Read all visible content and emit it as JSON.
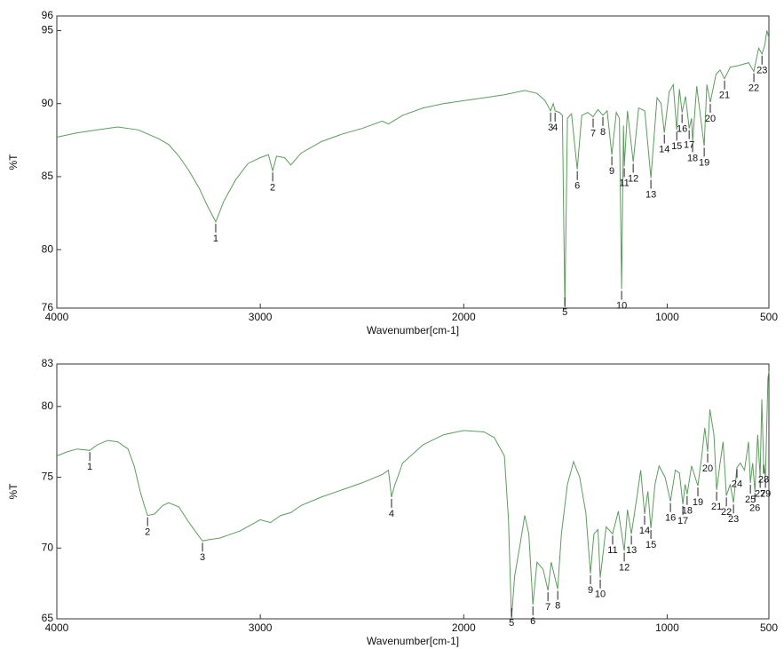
{
  "chart_data": [
    {
      "type": "line",
      "xlabel": "Wavenumber[cm-1]",
      "ylabel": "%T",
      "color": "#5c9c5c",
      "xlim": [
        4000,
        500
      ],
      "xticks": [
        4000,
        3000,
        2000,
        1000,
        500
      ],
      "ylim": [
        76,
        96
      ],
      "yticks": [
        76,
        80,
        85,
        90,
        95,
        96
      ],
      "x": [
        4000,
        3900,
        3800,
        3700,
        3600,
        3500,
        3450,
        3400,
        3350,
        3300,
        3260,
        3219,
        3180,
        3120,
        3060,
        3000,
        2960,
        2939,
        2920,
        2880,
        2850,
        2800,
        2700,
        2600,
        2500,
        2400,
        2370,
        2300,
        2200,
        2100,
        2000,
        1900,
        1800,
        1700,
        1640,
        1600,
        1573,
        1560,
        1551,
        1530,
        1515,
        1503,
        1490,
        1470,
        1442,
        1420,
        1390,
        1364,
        1340,
        1316,
        1295,
        1272,
        1250,
        1235,
        1224,
        1215,
        1211,
        1195,
        1167,
        1140,
        1110,
        1080,
        1050,
        1030,
        1014,
        990,
        970,
        953,
        940,
        927,
        910,
        892,
        880,
        875,
        855,
        818,
        805,
        788,
        760,
        740,
        718,
        690,
        650,
        600,
        574,
        550,
        534,
        520,
        510,
        500
      ],
      "values": [
        87.7,
        88.0,
        88.2,
        88.4,
        88.2,
        87.6,
        87.2,
        86.4,
        85.4,
        84.2,
        83.0,
        81.9,
        83.3,
        84.8,
        85.9,
        86.3,
        86.5,
        85.4,
        86.4,
        86.3,
        85.8,
        86.6,
        87.4,
        87.9,
        88.3,
        88.8,
        88.6,
        89.2,
        89.7,
        90.0,
        90.2,
        90.4,
        90.6,
        90.9,
        90.7,
        90.2,
        89.5,
        90.0,
        89.5,
        89.4,
        89.2,
        76.0,
        89.0,
        89.3,
        85.5,
        89.2,
        89.4,
        89.1,
        89.6,
        89.2,
        89.5,
        86.5,
        89.4,
        89.0,
        77.3,
        88.5,
        85.7,
        89.5,
        86.0,
        89.7,
        89.5,
        84.9,
        90.4,
        90.0,
        88.0,
        90.8,
        91.3,
        88.2,
        91.0,
        89.4,
        90.5,
        88.3,
        89.0,
        87.4,
        91.2,
        87.1,
        91.3,
        90.1,
        92.0,
        92.3,
        91.7,
        92.5,
        92.6,
        92.8,
        92.2,
        93.8,
        93.4,
        94.0,
        95.0,
        94.5
      ],
      "peaks": [
        {
          "label": "1",
          "x": 3219,
          "y": 81.9
        },
        {
          "label": "2",
          "x": 2939,
          "y": 85.4
        },
        {
          "label": "3",
          "x": 1573,
          "y": 89.5
        },
        {
          "label": "4",
          "x": 1551,
          "y": 89.5
        },
        {
          "label": "5",
          "x": 1503,
          "y": 76.0
        },
        {
          "label": "6",
          "x": 1442,
          "y": 85.5
        },
        {
          "label": "7",
          "x": 1364,
          "y": 89.1
        },
        {
          "label": "8",
          "x": 1316,
          "y": 89.2
        },
        {
          "label": "9",
          "x": 1272,
          "y": 86.5
        },
        {
          "label": "10",
          "x": 1224,
          "y": 77.3
        },
        {
          "label": "11",
          "x": 1211,
          "y": 85.7
        },
        {
          "label": "12",
          "x": 1167,
          "y": 86.0
        },
        {
          "label": "13",
          "x": 1080,
          "y": 84.9
        },
        {
          "label": "14",
          "x": 1014,
          "y": 88.0
        },
        {
          "label": "15",
          "x": 953,
          "y": 88.2
        },
        {
          "label": "16",
          "x": 927,
          "y": 89.4
        },
        {
          "label": "17",
          "x": 892,
          "y": 88.3
        },
        {
          "label": "18",
          "x": 875,
          "y": 87.4
        },
        {
          "label": "19",
          "x": 818,
          "y": 87.1
        },
        {
          "label": "20",
          "x": 788,
          "y": 90.1
        },
        {
          "label": "21",
          "x": 718,
          "y": 91.7
        },
        {
          "label": "22",
          "x": 574,
          "y": 92.2
        },
        {
          "label": "23",
          "x": 534,
          "y": 93.4
        }
      ]
    },
    {
      "type": "line",
      "xlabel": "Wavenumber[cm-1]",
      "ylabel": "%T",
      "color": "#5c9c5c",
      "xlim": [
        4000,
        500
      ],
      "xticks": [
        4000,
        3000,
        2000,
        1000,
        500
      ],
      "ylim": [
        65,
        83
      ],
      "yticks": [
        65,
        70,
        75,
        80,
        83
      ],
      "x": [
        4000,
        3950,
        3900,
        3838,
        3800,
        3750,
        3700,
        3650,
        3620,
        3590,
        3570,
        3554,
        3520,
        3480,
        3450,
        3400,
        3350,
        3300,
        3284,
        3250,
        3200,
        3100,
        3000,
        2950,
        2900,
        2850,
        2800,
        2700,
        2600,
        2500,
        2400,
        2370,
        2355,
        2340,
        2300,
        2200,
        2100,
        2000,
        1900,
        1850,
        1800,
        1780,
        1765,
        1750,
        1720,
        1700,
        1680,
        1660,
        1640,
        1610,
        1586,
        1570,
        1538,
        1520,
        1490,
        1460,
        1430,
        1400,
        1377,
        1360,
        1340,
        1329,
        1300,
        1268,
        1240,
        1211,
        1195,
        1176,
        1150,
        1130,
        1111,
        1095,
        1080,
        1060,
        1040,
        1010,
        984,
        960,
        940,
        923,
        912,
        902,
        880,
        849,
        830,
        815,
        801,
        790,
        770,
        757,
        740,
        725,
        709,
        690,
        674,
        657,
        640,
        620,
        600,
        591,
        580,
        569,
        555,
        543,
        535,
        526,
        517,
        510,
        505,
        500
      ],
      "values": [
        76.5,
        76.8,
        77.0,
        76.9,
        77.3,
        77.6,
        77.5,
        77.0,
        75.8,
        74.0,
        73.0,
        72.3,
        72.4,
        73.0,
        73.2,
        72.9,
        71.8,
        70.8,
        70.5,
        70.6,
        70.7,
        71.2,
        72.0,
        71.8,
        72.3,
        72.5,
        73.0,
        73.6,
        74.1,
        74.6,
        75.2,
        75.5,
        73.6,
        74.4,
        76.0,
        77.3,
        78.0,
        78.3,
        78.2,
        77.8,
        76.5,
        72.0,
        65.0,
        68.0,
        70.5,
        72.3,
        71.0,
        66.0,
        69.0,
        68.5,
        67.0,
        69.0,
        67.1,
        71.0,
        74.5,
        76.1,
        75.0,
        72.5,
        68.2,
        71.0,
        71.3,
        67.9,
        71.5,
        71.0,
        72.6,
        69.8,
        72.7,
        71.0,
        73.5,
        75.5,
        72.4,
        74.0,
        71.4,
        74.5,
        75.8,
        75.0,
        73.3,
        75.5,
        75.3,
        73.1,
        74.5,
        73.8,
        75.8,
        74.4,
        76.5,
        78.5,
        76.8,
        79.8,
        78.0,
        74.1,
        76.0,
        77.5,
        73.7,
        74.5,
        73.2,
        75.7,
        76.0,
        75.5,
        77.5,
        74.6,
        76.0,
        74.0,
        78.0,
        75.0,
        80.5,
        76.0,
        75.0,
        79.0,
        82.0,
        82.5
      ],
      "peaks": [
        {
          "label": "1",
          "x": 3838,
          "y": 76.9
        },
        {
          "label": "2",
          "x": 3554,
          "y": 72.3
        },
        {
          "label": "3",
          "x": 3284,
          "y": 70.5
        },
        {
          "label": "4",
          "x": 2355,
          "y": 73.6
        },
        {
          "label": "5",
          "x": 1765,
          "y": 65.0
        },
        {
          "label": "6",
          "x": 1660,
          "y": 66.0
        },
        {
          "label": "7",
          "x": 1586,
          "y": 67.0
        },
        {
          "label": "8",
          "x": 1538,
          "y": 67.1
        },
        {
          "label": "9",
          "x": 1377,
          "y": 68.2
        },
        {
          "label": "10",
          "x": 1329,
          "y": 67.9
        },
        {
          "label": "11",
          "x": 1268,
          "y": 71.0
        },
        {
          "label": "12",
          "x": 1211,
          "y": 69.8
        },
        {
          "label": "13",
          "x": 1176,
          "y": 71.0
        },
        {
          "label": "14",
          "x": 1111,
          "y": 72.4
        },
        {
          "label": "15",
          "x": 1080,
          "y": 71.4
        },
        {
          "label": "16",
          "x": 984,
          "y": 73.3
        },
        {
          "label": "17",
          "x": 923,
          "y": 73.1
        },
        {
          "label": "18",
          "x": 902,
          "y": 73.8
        },
        {
          "label": "19",
          "x": 849,
          "y": 74.4
        },
        {
          "label": "20",
          "x": 801,
          "y": 76.8
        },
        {
          "label": "21",
          "x": 757,
          "y": 74.1
        },
        {
          "label": "22",
          "x": 709,
          "y": 73.7
        },
        {
          "label": "23",
          "x": 674,
          "y": 73.2
        },
        {
          "label": "24",
          "x": 657,
          "y": 75.7
        },
        {
          "label": "25",
          "x": 591,
          "y": 74.6
        },
        {
          "label": "26",
          "x": 569,
          "y": 74.0
        },
        {
          "label": "27",
          "x": 543,
          "y": 75.0
        },
        {
          "label": "28",
          "x": 526,
          "y": 76.0
        },
        {
          "label": "29",
          "x": 517,
          "y": 75.0
        }
      ]
    }
  ]
}
